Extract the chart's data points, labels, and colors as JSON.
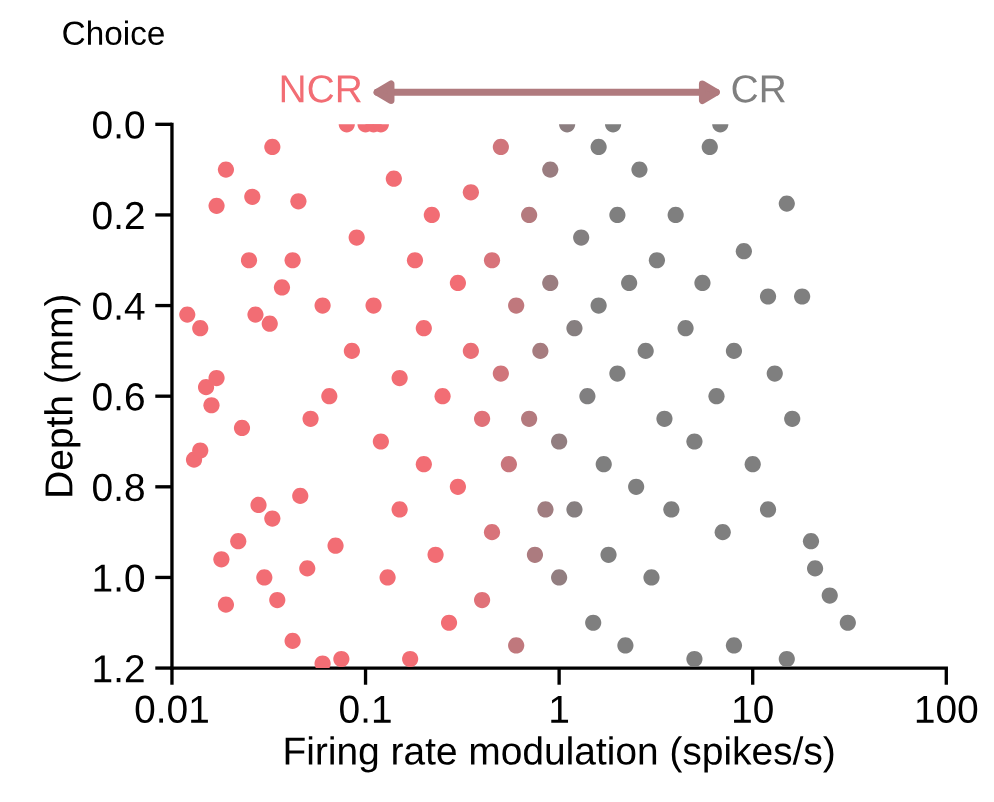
{
  "chart_data": {
    "type": "scatter",
    "title": "Choice",
    "xlabel": "Firing rate modulation (spikes/s)",
    "ylabel": "Depth (mm)",
    "annotations": [
      "NCR",
      "CR"
    ],
    "log": "x",
    "xlim": [
      0.01,
      100
    ],
    "xticks": [
      0.01,
      0.1,
      1,
      10,
      100
    ],
    "ylim": [
      1.2,
      0.0
    ],
    "yticks": [
      {
        "value": 0.0,
        "label": "0.0"
      },
      0.2,
      0.4,
      0.6,
      0.8,
      {
        "value": 1.0,
        "label": "1.0"
      },
      1.2
    ],
    "grid": false,
    "marker": "circle",
    "series": [
      {
        "x": [
          0.012,
          0.014,
          0.013,
          0.014,
          0.015,
          0.016,
          0.017,
          0.017,
          0.019,
          0.018,
          0.019,
          0.022,
          0.023,
          0.025,
          0.026,
          0.027,
          0.028,
          0.03,
          0.033,
          0.032,
          0.033,
          0.035,
          0.037,
          0.042,
          0.042,
          0.045,
          0.046,
          0.05,
          0.052,
          0.06,
          0.06,
          0.065,
          0.07,
          0.075,
          0.08,
          0.085,
          0.09,
          0.1,
          0.11,
          0.12,
          0.11,
          0.12,
          0.13,
          0.14,
          0.15,
          0.15,
          0.17,
          0.18,
          0.2,
          0.2,
          0.22,
          0.23,
          0.25,
          0.27,
          0.3,
          0.3,
          0.35,
          0.35,
          0.4,
          0.4,
          0.45,
          0.45,
          0.5,
          0.5,
          0.55,
          0.6,
          0.6,
          0.7,
          0.7,
          0.75,
          0.8,
          0.85,
          0.9,
          0.9,
          1.0,
          1.0,
          1.1,
          1.2,
          1.2,
          1.3,
          1.4,
          1.5,
          1.6,
          1.6,
          1.7,
          1.8,
          1.9,
          2.0,
          2.0,
          2.2,
          2.3,
          2.5,
          2.6,
          2.8,
          3.0,
          3.2,
          3.5,
          3.8,
          4.0,
          4.5,
          5.0,
          5.0,
          5.5,
          6,
          6.5,
          6.8,
          7,
          8,
          8,
          9,
          10,
          12,
          12,
          13,
          15,
          15,
          16,
          18,
          20,
          21,
          25,
          31
        ],
        "values": [
          0.42,
          0.45,
          0.74,
          0.72,
          0.58,
          0.62,
          0.18,
          0.56,
          0.1,
          0.96,
          1.06,
          0.92,
          0.67,
          0.3,
          0.16,
          0.42,
          0.84,
          1.0,
          0.05,
          0.44,
          0.87,
          1.05,
          0.36,
          0.3,
          1.14,
          0.17,
          0.82,
          0.98,
          0.65,
          1.19,
          0.4,
          0.6,
          0.93,
          1.18,
          0.0,
          0.5,
          0.25,
          0.0,
          0.0,
          0.0,
          0.4,
          0.7,
          1.0,
          0.12,
          0.56,
          0.85,
          1.18,
          0.3,
          0.45,
          0.75,
          0.2,
          0.95,
          0.6,
          1.1,
          0.35,
          0.8,
          0.5,
          0.15,
          1.05,
          0.65,
          0.3,
          0.9,
          0.55,
          0.05,
          0.75,
          0.4,
          1.15,
          0.2,
          0.65,
          0.95,
          0.5,
          0.85,
          0.1,
          0.35,
          0.7,
          1.0,
          0.0,
          0.45,
          0.85,
          0.25,
          0.6,
          1.1,
          0.05,
          0.4,
          0.75,
          0.95,
          0.0,
          0.2,
          0.55,
          1.15,
          0.35,
          0.8,
          0.1,
          0.5,
          1.0,
          0.3,
          0.65,
          0.85,
          0.2,
          0.45,
          1.18,
          0.7,
          0.35,
          0.05,
          0.6,
          0.0,
          0.9,
          0.5,
          1.15,
          0.28,
          0.75,
          0.38,
          0.85,
          0.55,
          0.175,
          1.18,
          0.65,
          0.38,
          0.92,
          0.98,
          1.04,
          1.1
        ],
        "colors": [
          "#f26d74",
          "#f26d74",
          "#f26d74",
          "#f26d74",
          "#f26d74",
          "#f26d74",
          "#f26d74",
          "#f26d74",
          "#f26d74",
          "#f26d74",
          "#f26d74",
          "#f26d74",
          "#f26d74",
          "#f26d74",
          "#f26d74",
          "#f26d74",
          "#f26d74",
          "#f26d74",
          "#f26d74",
          "#f26d74",
          "#f26d74",
          "#f26d74",
          "#f26d74",
          "#f26d74",
          "#f26d74",
          "#f26d74",
          "#f26d74",
          "#f26d74",
          "#f26d74",
          "#f26d74",
          "#f26d74",
          "#f26d74",
          "#f26d74",
          "#f26d74",
          "#f26d74",
          "#f26d74",
          "#f26d74",
          "#f26d74",
          "#f26d74",
          "#f26d74",
          "#f26d74",
          "#f26d74",
          "#f26d74",
          "#f26d74",
          "#f26d74",
          "#f26d74",
          "#f26d74",
          "#f26d74",
          "#f26d74",
          "#f26d74",
          "#f26d74",
          "#f26d74",
          "#f26d74",
          "#f26d74",
          "#f26d74",
          "#f26d74",
          "#ea6f76",
          "#ea6f76",
          "#e07178",
          "#e07178",
          "#d8737a",
          "#d8737a",
          "#d0757b",
          "#d0757b",
          "#c8767c",
          "#c0787d",
          "#c0787d",
          "#b47a7e",
          "#b47a7e",
          "#ac7b7f",
          "#a67c7f",
          "#a07d80",
          "#9a7d80",
          "#9a7d80",
          "#927e80",
          "#927e80",
          "#8c7e80",
          "#867f80",
          "#867f80",
          "#837f80",
          "#807f80",
          "#7f7f7f",
          "#7f7f7f",
          "#7f7f7f",
          "#7f7f7f",
          "#7f7f7f",
          "#7f7f7f",
          "#7f7f7f",
          "#7f7f7f",
          "#7f7f7f",
          "#7f7f7f",
          "#7f7f7f",
          "#7f7f7f",
          "#7f7f7f",
          "#7f7f7f",
          "#7f7f7f",
          "#7f7f7f",
          "#7f7f7f",
          "#7f7f7f",
          "#7f7f7f",
          "#7f7f7f",
          "#7f7f7f",
          "#7f7f7f",
          "#7f7f7f",
          "#7f7f7f",
          "#7f7f7f",
          "#7f7f7f",
          "#7f7f7f",
          "#7f7f7f",
          "#7f7f7f",
          "#7f7f7f",
          "#7f7f7f",
          "#7f7f7f",
          "#7f7f7f",
          "#7f7f7f",
          "#7f7f7f",
          "#7f7f7f",
          "#7f7f7f",
          "#7f7f7f",
          "#7f7f7f",
          "#7f7f7f",
          "#7f7f7f"
        ]
      }
    ]
  }
}
